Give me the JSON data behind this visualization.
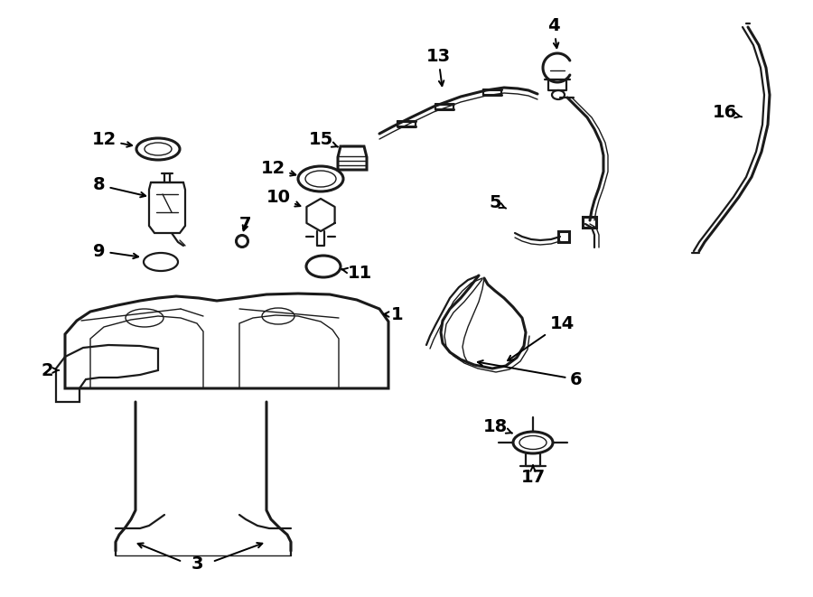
{
  "bg_color": "#ffffff",
  "line_color": "#1a1a1a",
  "lw_main": 1.6,
  "lw_thick": 2.2,
  "lw_thin": 1.0,
  "label_fontsize": 14,
  "arrow_lw": 1.4
}
